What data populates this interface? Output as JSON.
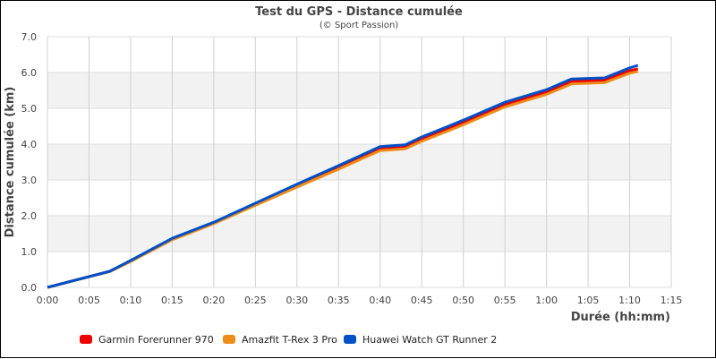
{
  "chart_data": {
    "type": "line",
    "title": "Test du GPS - Distance cumulée",
    "subtitle": "(© Sport Passion)",
    "xlabel": "Durée (hh:mm)",
    "ylabel": "Distance cumulée (km)",
    "xlim": [
      "0:00",
      "1:15"
    ],
    "ylim": [
      0,
      7
    ],
    "x_ticks": [
      "0:00",
      "0:05",
      "0:10",
      "0:15",
      "0:20",
      "0:25",
      "0:30",
      "0:35",
      "0:40",
      "0:45",
      "0:50",
      "0:55",
      "1:00",
      "1:05",
      "1:10",
      "1:15"
    ],
    "y_ticks": [
      "0.0",
      "1.0",
      "2.0",
      "3.0",
      "4.0",
      "5.0",
      "6.0",
      "7.0"
    ],
    "grid": true,
    "legend": "bottom",
    "x": [
      "0:00",
      "0:05",
      "0:07:30",
      "0:10",
      "0:15",
      "0:20",
      "0:25",
      "0:30",
      "0:35",
      "0:40",
      "0:43",
      "0:45",
      "0:50",
      "0:55",
      "1:00",
      "1:03",
      "1:07",
      "1:10",
      "1:11"
    ],
    "series": [
      {
        "name": "Garmin Forerunner 970",
        "color": "#ee0000",
        "values": [
          0,
          0.3,
          0.45,
          0.74,
          1.35,
          1.8,
          2.32,
          2.84,
          3.35,
          3.87,
          3.92,
          4.14,
          4.6,
          5.1,
          5.45,
          5.75,
          5.78,
          6.05,
          6.1
        ]
      },
      {
        "name": "Amazfit T-Rex 3 Pro",
        "color": "#ee8c1a",
        "values": [
          0,
          0.3,
          0.44,
          0.72,
          1.33,
          1.78,
          2.29,
          2.8,
          3.3,
          3.82,
          3.87,
          4.08,
          4.54,
          5.04,
          5.39,
          5.68,
          5.72,
          5.98,
          6.03
        ]
      },
      {
        "name": "Huawei Watch GT Runner 2",
        "color": "#0050c8",
        "values": [
          0,
          0.3,
          0.45,
          0.75,
          1.37,
          1.82,
          2.35,
          2.88,
          3.4,
          3.93,
          3.98,
          4.2,
          4.67,
          5.17,
          5.52,
          5.82,
          5.85,
          6.13,
          6.2
        ]
      }
    ]
  }
}
